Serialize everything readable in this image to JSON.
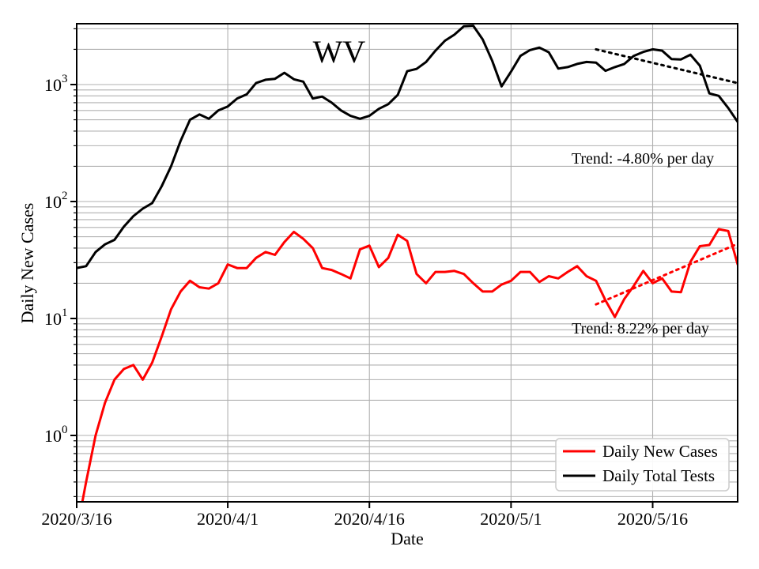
{
  "figure": {
    "title": "WV",
    "background": "#ffffff"
  },
  "annotations": {
    "tests_trend": "Trend: -4.80% per day",
    "cases_trend": "Trend: 8.22% per day"
  },
  "legend": {
    "items": [
      {
        "label": "Daily New Cases",
        "color": "#ff0000"
      },
      {
        "label": "Daily Total Tests",
        "color": "#000000"
      }
    ]
  },
  "chart_data": {
    "type": "line",
    "title": "WV",
    "xlabel": "Date",
    "ylabel": "Daily New Cases",
    "yscale": "log",
    "ylim": [
      0.27,
      3320
    ],
    "grid": "both-major-and-minor",
    "legend_position": "lower right",
    "x_tick_labels": [
      "2020/3/16",
      "2020/4/1",
      "2020/4/16",
      "2020/5/1",
      "2020/5/16"
    ],
    "x_tick_positions": [
      0,
      16,
      31,
      46,
      61
    ],
    "y_tick_exponents": [
      0,
      1,
      2,
      3
    ],
    "x": [
      "2020/3/16",
      "2020/3/17",
      "2020/3/18",
      "2020/3/19",
      "2020/3/20",
      "2020/3/21",
      "2020/3/22",
      "2020/3/23",
      "2020/3/24",
      "2020/3/25",
      "2020/3/26",
      "2020/3/27",
      "2020/3/28",
      "2020/3/29",
      "2020/3/30",
      "2020/3/31",
      "2020/4/1",
      "2020/4/2",
      "2020/4/3",
      "2020/4/4",
      "2020/4/5",
      "2020/4/6",
      "2020/4/7",
      "2020/4/8",
      "2020/4/9",
      "2020/4/10",
      "2020/4/11",
      "2020/4/12",
      "2020/4/13",
      "2020/4/14",
      "2020/4/15",
      "2020/4/16",
      "2020/4/17",
      "2020/4/18",
      "2020/4/19",
      "2020/4/20",
      "2020/4/21",
      "2020/4/22",
      "2020/4/23",
      "2020/4/24",
      "2020/4/25",
      "2020/4/26",
      "2020/4/27",
      "2020/4/28",
      "2020/4/29",
      "2020/4/30",
      "2020/5/1",
      "2020/5/2",
      "2020/5/3",
      "2020/5/4",
      "2020/5/5",
      "2020/5/6",
      "2020/5/7",
      "2020/5/8",
      "2020/5/9",
      "2020/5/10",
      "2020/5/11",
      "2020/5/12",
      "2020/5/13",
      "2020/5/14",
      "2020/5/15",
      "2020/5/16",
      "2020/5/17",
      "2020/5/18",
      "2020/5/19",
      "2020/5/20",
      "2020/5/21",
      "2020/5/22",
      "2020/5/23",
      "2020/5/24",
      "2020/5/25"
    ],
    "series": [
      {
        "name": "Daily New Cases",
        "color": "#ff0000",
        "values": [
          0.15,
          0.4,
          1.0,
          1.9,
          3.0,
          3.7,
          4.0,
          3.0,
          4.2,
          7.0,
          12,
          17,
          21,
          18.5,
          18,
          20,
          29,
          27,
          27,
          33,
          37,
          35,
          45,
          55,
          48,
          40,
          27,
          26,
          24,
          22,
          39,
          42,
          27.5,
          33,
          52,
          46,
          24,
          20,
          25,
          25,
          25.5,
          24,
          20,
          17,
          17,
          19.5,
          21,
          25,
          25,
          20.5,
          23,
          22,
          25,
          28,
          23,
          21,
          14.3,
          10.3,
          14.7,
          19,
          25.5,
          20,
          22,
          17,
          16.8,
          30.5,
          41.5,
          42.5,
          58,
          56,
          29
        ]
      },
      {
        "name": "Daily Total Tests",
        "color": "#000000",
        "values": [
          27,
          28,
          37,
          43,
          47,
          61,
          75,
          87,
          97,
          135,
          200,
          330,
          500,
          555,
          510,
          600,
          650,
          760,
          825,
          1030,
          1100,
          1120,
          1260,
          1110,
          1060,
          760,
          790,
          700,
          600,
          540,
          510,
          540,
          620,
          680,
          815,
          1300,
          1360,
          1560,
          1950,
          2370,
          2670,
          3150,
          3180,
          2430,
          1600,
          965,
          1290,
          1760,
          1970,
          2070,
          1890,
          1370,
          1410,
          1500,
          1560,
          1540,
          1310,
          1410,
          1500,
          1760,
          1900,
          2000,
          1950,
          1650,
          1640,
          1800,
          1450,
          840,
          800,
          630,
          480
        ]
      }
    ],
    "trends": [
      {
        "series": "Daily Total Tests",
        "label": "Trend: -4.80% per day",
        "rate_percent_per_day": -4.8,
        "start_date": "2020/5/10",
        "end_date": "2020/5/25",
        "start_value": 2000,
        "end_value": 1030,
        "color": "#000000",
        "style": "dotted"
      },
      {
        "series": "Daily New Cases",
        "label": "Trend: 8.22% per day",
        "rate_percent_per_day": 8.22,
        "start_date": "2020/5/10",
        "end_date": "2020/5/25",
        "start_value": 13.2,
        "end_value": 43.5,
        "color": "#ff0000",
        "style": "dotted"
      }
    ]
  }
}
